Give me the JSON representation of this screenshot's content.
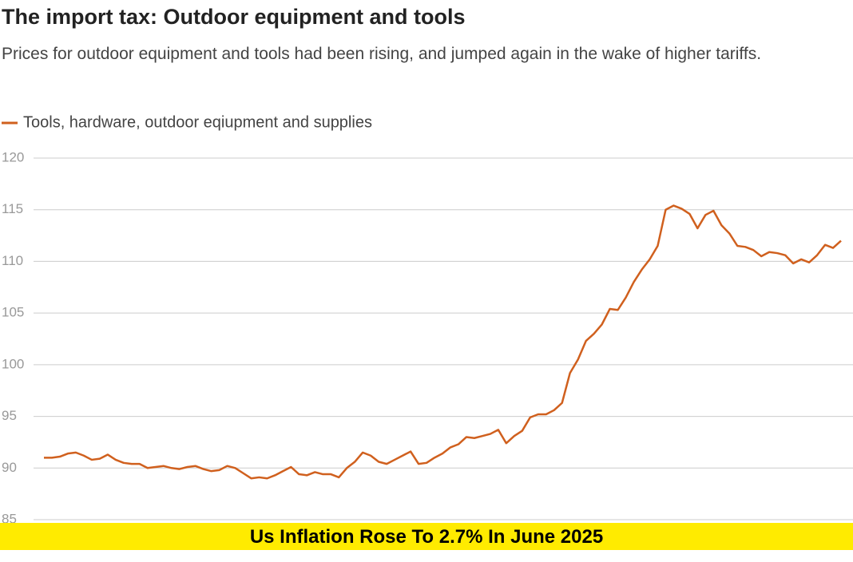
{
  "chart_data": {
    "type": "line",
    "title": "The import tax: Outdoor equipment and tools",
    "subtitle": "Prices for outdoor equipment and tools had been rising, and jumped again in the wake of higher tariffs.",
    "series": [
      {
        "name": "Tools, hardware, outdoor eqiupment and supplies",
        "color": "#d0601e",
        "values": [
          91.0,
          91.0,
          91.1,
          91.4,
          91.5,
          91.2,
          90.8,
          90.9,
          91.3,
          90.8,
          90.5,
          90.4,
          90.4,
          90.0,
          90.1,
          90.2,
          90.0,
          89.9,
          90.1,
          90.2,
          89.9,
          89.7,
          89.8,
          90.2,
          90.0,
          89.5,
          89.0,
          89.1,
          89.0,
          89.3,
          89.7,
          90.1,
          89.4,
          89.3,
          89.6,
          89.4,
          89.4,
          89.1,
          90.0,
          90.6,
          91.5,
          91.2,
          90.6,
          90.4,
          90.8,
          91.2,
          91.6,
          90.4,
          90.5,
          91.0,
          91.4,
          92.0,
          92.3,
          93.0,
          92.9,
          93.1,
          93.3,
          93.7,
          92.4,
          93.1,
          93.6,
          94.9,
          95.2,
          95.2,
          95.6,
          96.3,
          99.2,
          100.5,
          102.3,
          103.0,
          103.9,
          105.4,
          105.3,
          106.5,
          108.0,
          109.2,
          110.2,
          111.5,
          115.0,
          115.4,
          115.1,
          114.6,
          113.2,
          114.5,
          114.9,
          113.5,
          112.7,
          111.5,
          111.4,
          111.1,
          110.5,
          110.9,
          110.8,
          110.6,
          109.8,
          110.2,
          109.9,
          110.6,
          111.6,
          111.3,
          112.0
        ]
      }
    ],
    "ylim": [
      85,
      120
    ],
    "yticks": [
      85,
      90,
      95,
      100,
      105,
      110,
      115,
      120
    ],
    "grid": true
  },
  "banner": "Us Inflation Rose To 2.7% In June 2025"
}
